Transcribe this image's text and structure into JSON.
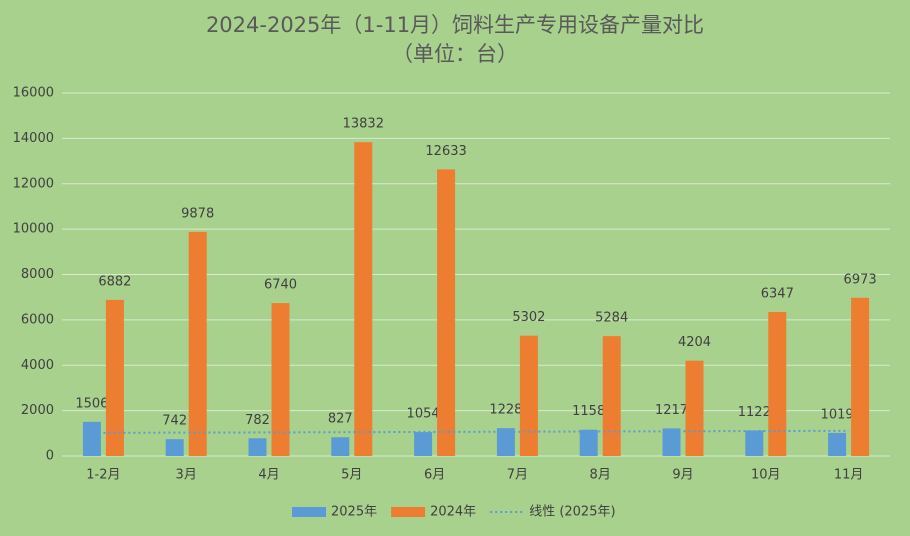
{
  "chart_data": {
    "type": "bar",
    "title": "2024-2025年（1-11月）饲料生产专用设备产量对比",
    "subtitle": "（单位：台）",
    "categories": [
      "1-2月",
      "3月",
      "4月",
      "5月",
      "6月",
      "7月",
      "8月",
      "9月",
      "10月",
      "11月"
    ],
    "series": [
      {
        "name": "2025年",
        "color": "#5b9bd5",
        "values": [
          1506,
          742,
          782,
          827,
          1054,
          1228,
          1158,
          1217,
          1122,
          1019
        ]
      },
      {
        "name": "2024年",
        "color": "#ed7d31",
        "values": [
          6882,
          9878,
          6740,
          13832,
          12633,
          5302,
          5284,
          4204,
          6347,
          6973
        ]
      }
    ],
    "trendline": {
      "name": "线性 (2025年)",
      "color": "#5b9bd5",
      "values": [
        1021,
        1110
      ]
    },
    "ylim": [
      0,
      16000
    ],
    "yticks": [
      0,
      2000,
      4000,
      6000,
      8000,
      10000,
      12000,
      14000,
      16000
    ],
    "grid": true,
    "legend": "bottom"
  }
}
